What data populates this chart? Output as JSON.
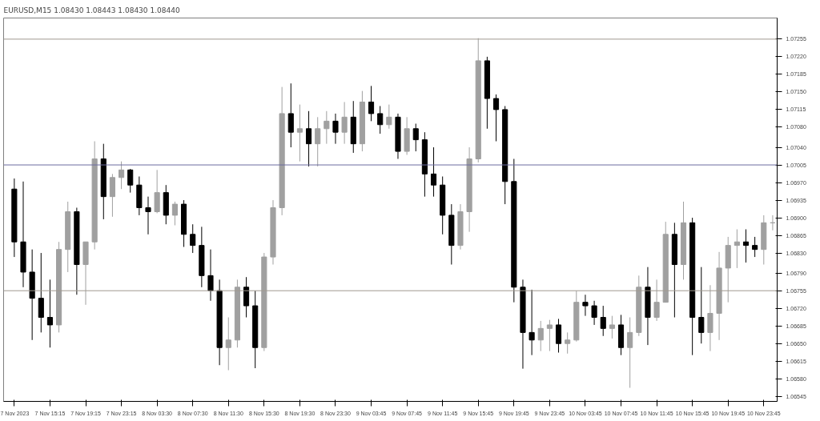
{
  "chart_data": {
    "type": "candlestick",
    "title": "EURUSD,M15  1.08430 1.08443 1.08430 1.08440",
    "categories": [
      "7 Nov 2023",
      null,
      null,
      null,
      "7 Nov 15:15",
      null,
      null,
      null,
      "7 Nov 19:15",
      null,
      null,
      null,
      "7 Nov 23:15",
      null,
      null,
      null,
      "8 Nov 03:30",
      null,
      null,
      null,
      "8 Nov 07:30",
      null,
      null,
      null,
      "8 Nov 11:30",
      null,
      null,
      null,
      "8 Nov 15:30",
      null,
      null,
      null,
      "8 Nov 19:30",
      null,
      null,
      null,
      "8 Nov 23:30",
      null,
      null,
      null,
      "9 Nov 03:45",
      null,
      null,
      null,
      "9 Nov 07:45",
      null,
      null,
      null,
      "9 Nov 11:45",
      null,
      null,
      null,
      "9 Nov 15:45",
      null,
      null,
      null,
      "9 Nov 19:45",
      null,
      null,
      null,
      "9 Nov 23:45",
      null,
      null,
      null,
      "10 Nov 03:45",
      null,
      null,
      null,
      "10 Nov 07:45",
      null,
      null,
      null,
      "10 Nov 11:45",
      null,
      null,
      null,
      "10 Nov 15:45",
      null,
      null,
      null,
      "10 Nov 19:45",
      null,
      null,
      null,
      "10 Nov 23:45",
      null
    ],
    "ohlc": [
      [
        1.06957,
        1.06978,
        1.06822,
        1.06852
      ],
      [
        1.06852,
        1.06972,
        1.06762,
        1.06792
      ],
      [
        1.06792,
        1.06837,
        1.06657,
        1.0674
      ],
      [
        1.0674,
        1.0683,
        1.06672,
        1.06702
      ],
      [
        1.06702,
        1.06777,
        1.06642,
        1.06687
      ],
      [
        1.06687,
        1.06852,
        1.06672,
        1.06837
      ],
      [
        1.06837,
        1.06932,
        1.06792,
        1.06912
      ],
      [
        1.06912,
        1.0692,
        1.06747,
        1.06807
      ],
      [
        1.06807,
        1.06852,
        1.06727,
        1.06852
      ],
      [
        1.06852,
        1.07052,
        1.06837,
        1.07017
      ],
      [
        1.07017,
        1.07047,
        1.06897,
        1.06942
      ],
      [
        1.06942,
        1.06987,
        1.06902,
        1.0698
      ],
      [
        1.0698,
        1.07012,
        1.06957,
        1.06995
      ],
      [
        1.06995,
        1.06997,
        1.0695,
        1.06965
      ],
      [
        1.06965,
        1.06982,
        1.06905,
        1.0692
      ],
      [
        1.0692,
        1.06942,
        1.06867,
        1.06912
      ],
      [
        1.06912,
        1.06995,
        1.06909,
        1.0695
      ],
      [
        1.0695,
        1.06965,
        1.06887,
        1.06905
      ],
      [
        1.06905,
        1.06932,
        1.06885,
        1.06927
      ],
      [
        1.06927,
        1.06935,
        1.06842,
        1.06867
      ],
      [
        1.06867,
        1.06887,
        1.0683,
        1.06845
      ],
      [
        1.06845,
        1.06882,
        1.06762,
        1.06785
      ],
      [
        1.06785,
        1.06837,
        1.06735,
        1.06755
      ],
      [
        1.06755,
        1.06777,
        1.06607,
        1.06642
      ],
      [
        1.06642,
        1.06702,
        1.06597,
        1.06657
      ],
      [
        1.06657,
        1.06777,
        1.06642,
        1.06762
      ],
      [
        1.06762,
        1.06782,
        1.06702,
        1.06725
      ],
      [
        1.06725,
        1.06755,
        1.06601,
        1.06642
      ],
      [
        1.06642,
        1.0683,
        1.06635,
        1.06822
      ],
      [
        1.06822,
        1.06935,
        1.06807,
        1.0692
      ],
      [
        1.0692,
        1.0716,
        1.06905,
        1.07107
      ],
      [
        1.07107,
        1.07167,
        1.0704,
        1.0707
      ],
      [
        1.0707,
        1.07125,
        1.07012,
        1.07077
      ],
      [
        1.07077,
        1.07112,
        1.07002,
        1.07047
      ],
      [
        1.07047,
        1.071,
        1.07002,
        1.07077
      ],
      [
        1.07077,
        1.07112,
        1.07047,
        1.07092
      ],
      [
        1.07092,
        1.07107,
        1.07047,
        1.0707
      ],
      [
        1.0707,
        1.0713,
        1.07047,
        1.071
      ],
      [
        1.071,
        1.07132,
        1.07029,
        1.07047
      ],
      [
        1.07047,
        1.07152,
        1.07032,
        1.0713
      ],
      [
        1.0713,
        1.07162,
        1.07092,
        1.07107
      ],
      [
        1.07107,
        1.07122,
        1.07067,
        1.07085
      ],
      [
        1.07085,
        1.07125,
        1.07077,
        1.071
      ],
      [
        1.071,
        1.07107,
        1.07017,
        1.07032
      ],
      [
        1.07032,
        1.071,
        1.07025,
        1.07077
      ],
      [
        1.07077,
        1.07087,
        1.07032,
        1.07055
      ],
      [
        1.07055,
        1.0707,
        1.06942,
        1.06987
      ],
      [
        1.06987,
        1.0704,
        1.06942,
        1.06965
      ],
      [
        1.06965,
        1.06982,
        1.06867,
        1.06905
      ],
      [
        1.06905,
        1.06927,
        1.06807,
        1.06845
      ],
      [
        1.06845,
        1.06927,
        1.06837,
        1.06912
      ],
      [
        1.06912,
        1.0704,
        1.06872,
        1.07017
      ],
      [
        1.07017,
        1.07257,
        1.0701,
        1.07212
      ],
      [
        1.07212,
        1.0722,
        1.07077,
        1.07137
      ],
      [
        1.07137,
        1.07145,
        1.07052,
        1.07115
      ],
      [
        1.07115,
        1.07122,
        1.06927,
        1.06972
      ],
      [
        1.06972,
        1.07017,
        1.06732,
        1.06762
      ],
      [
        1.06762,
        1.06777,
        1.066,
        1.06672
      ],
      [
        1.06672,
        1.06757,
        1.06627,
        1.06657
      ],
      [
        1.06657,
        1.06695,
        1.06635,
        1.0668
      ],
      [
        1.0668,
        1.06697,
        1.06635,
        1.06687
      ],
      [
        1.06687,
        1.06699,
        1.06632,
        1.0665
      ],
      [
        1.0665,
        1.06672,
        1.0663,
        1.06657
      ],
      [
        1.06657,
        1.06755,
        1.06654,
        1.06732
      ],
      [
        1.06732,
        1.06747,
        1.06705,
        1.06725
      ],
      [
        1.06725,
        1.06735,
        1.06687,
        1.06702
      ],
      [
        1.06702,
        1.06725,
        1.06665,
        1.0668
      ],
      [
        1.0668,
        1.06705,
        1.0666,
        1.06687
      ],
      [
        1.06687,
        1.06707,
        1.06627,
        1.06642
      ],
      [
        1.06642,
        1.06702,
        1.06562,
        1.06672
      ],
      [
        1.06672,
        1.06785,
        1.06665,
        1.06762
      ],
      [
        1.06762,
        1.06802,
        1.06647,
        1.06702
      ],
      [
        1.06702,
        1.06777,
        1.06695,
        1.06732
      ],
      [
        1.06732,
        1.06892,
        1.06732,
        1.06867
      ],
      [
        1.06867,
        1.0689,
        1.06702,
        1.06807
      ],
      [
        1.06807,
        1.06932,
        1.06777,
        1.0689
      ],
      [
        1.0689,
        1.069,
        1.06627,
        1.06702
      ],
      [
        1.06702,
        1.06802,
        1.0665,
        1.06672
      ],
      [
        1.06672,
        1.06766,
        1.06635,
        1.0671
      ],
      [
        1.0671,
        1.06832,
        1.06657,
        1.068
      ],
      [
        1.068,
        1.06862,
        1.06732,
        1.06845
      ],
      [
        1.06845,
        1.06877,
        1.068,
        1.06852
      ],
      [
        1.06852,
        1.06877,
        1.06811,
        1.06845
      ],
      [
        1.06845,
        1.06862,
        1.06822,
        1.06837
      ],
      [
        1.06837,
        1.06905,
        1.06807,
        1.0689
      ],
      [
        1.0689,
        1.06905,
        1.06875,
        1.0689
      ]
    ],
    "colors": [
      "#000000",
      "#000000",
      "#000000",
      "#000000",
      "#000000",
      "#a0a0a0",
      "#a0a0a0",
      "#000000",
      "#a0a0a0",
      "#a0a0a0",
      "#000000",
      "#a0a0a0",
      "#a0a0a0",
      "#000000",
      "#000000",
      "#000000",
      "#a0a0a0",
      "#000000",
      "#a0a0a0",
      "#000000",
      "#000000",
      "#000000",
      "#000000",
      "#000000",
      "#a0a0a0",
      "#a0a0a0",
      "#000000",
      "#000000",
      "#a0a0a0",
      "#a0a0a0",
      "#a0a0a0",
      "#000000",
      "#a0a0a0",
      "#000000",
      "#a0a0a0",
      "#a0a0a0",
      "#000000",
      "#a0a0a0",
      "#000000",
      "#a0a0a0",
      "#000000",
      "#000000",
      "#a0a0a0",
      "#000000",
      "#a0a0a0",
      "#000000",
      "#000000",
      "#000000",
      "#000000",
      "#000000",
      "#a0a0a0",
      "#a0a0a0",
      "#a0a0a0",
      "#000000",
      "#000000",
      "#000000",
      "#000000",
      "#000000",
      "#000000",
      "#a0a0a0",
      "#a0a0a0",
      "#000000",
      "#a0a0a0",
      "#a0a0a0",
      "#000000",
      "#000000",
      "#000000",
      "#a0a0a0",
      "#000000",
      "#a0a0a0",
      "#a0a0a0",
      "#000000",
      "#a0a0a0",
      "#a0a0a0",
      "#000000",
      "#a0a0a0",
      "#000000",
      "#000000",
      "#a0a0a0",
      "#a0a0a0",
      "#a0a0a0",
      "#a0a0a0",
      "#000000",
      "#000000",
      "#a0a0a0",
      "#a0a0a0"
    ],
    "ylim": [
      1.06535,
      1.07297
    ],
    "yticks": [
      1.07255,
      {
        "value": 1.0722,
        "label": "1.07220"
      },
      1.07185,
      {
        "value": 1.0715,
        "label": "1.07150"
      },
      1.07115,
      {
        "value": 1.0708,
        "label": "1.07080"
      },
      {
        "value": 1.0704,
        "label": "1.07040"
      },
      1.07005,
      {
        "value": 1.0697,
        "label": "1.06970"
      },
      1.06935,
      {
        "value": 1.069,
        "label": "1.06900"
      },
      1.06865,
      {
        "value": 1.0683,
        "label": "1.06830"
      },
      {
        "value": 1.0679,
        "label": "1.06790"
      },
      1.06755,
      {
        "value": 1.0672,
        "label": "1.06720"
      },
      1.06685,
      {
        "value": 1.0665,
        "label": "1.06650"
      },
      1.06615,
      {
        "value": 1.0658,
        "label": "1.06580"
      },
      1.06545
    ],
    "ref_lines": [
      {
        "axis": "y",
        "value": 1.07255,
        "color": "#a09a90"
      },
      {
        "axis": "y",
        "value": 1.07005,
        "color": "#6c6ca0"
      },
      {
        "axis": "y",
        "value": 1.06755,
        "color": "#a09a90"
      }
    ],
    "grid": false
  }
}
